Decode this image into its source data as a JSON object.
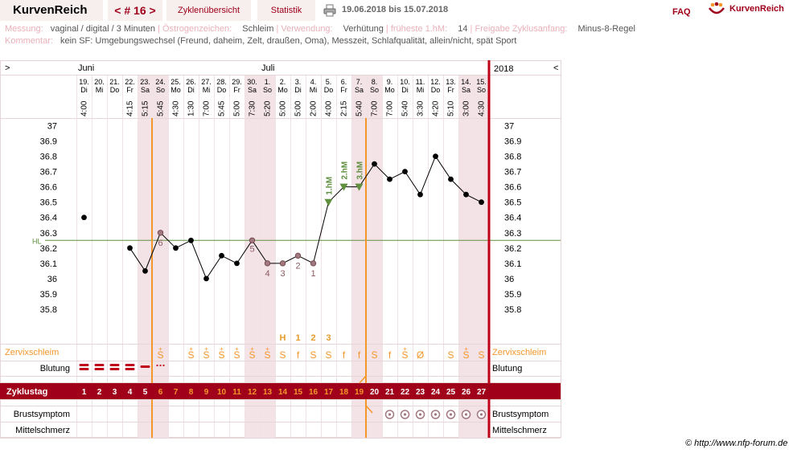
{
  "app": {
    "name": "KurvenReich",
    "cycle_nav": "< # 16 >",
    "tab_overview": "Zyklenübersicht",
    "tab_stats": "Statistik",
    "date_range": "19.06.2018 bis 15.07.2018",
    "faq": "FAQ",
    "logo_text": "KurvenReich"
  },
  "info": {
    "row1": [
      {
        "label": "Messung:",
        "value": "vaginal / digital / 3 Minuten"
      },
      {
        "label": "Östrogenzeichen:",
        "value": "Schleim"
      },
      {
        "label": "Verwendung:",
        "value": "Verhütung"
      },
      {
        "label": "früheste 1.hM:",
        "value": "14"
      },
      {
        "label": "Freigabe Zyklusanfang:",
        "value": "Minus-8-Regel"
      }
    ],
    "comment_label": "Kommentar:",
    "comment": "kein SF: Umgebungswechsel (Freund, daheim, Zelt, draußen, Oma), Messzeit, Schlafqualität, allein/nicht, spät Sport"
  },
  "header": {
    "left_arrow": ">",
    "right_arrow": "<",
    "year": "2018",
    "months": [
      {
        "name": "Juni",
        "day_index": 0
      },
      {
        "name": "Juli",
        "day_index": 12
      }
    ]
  },
  "rows": {
    "cervix": "Zervixschleim",
    "bleeding": "Blutung",
    "cycle_day": "Zyklustag",
    "breast": "Brustsymptom",
    "mittel": "Mittelschmerz"
  },
  "hl_label": "HL",
  "ylabels": [
    "37",
    "36.9",
    "36.8",
    "36.7",
    "36.6",
    "36.5",
    "36.4",
    "36.3",
    "36.2",
    "36.1",
    "36",
    "35.9",
    "35.8"
  ],
  "chart_data": {
    "type": "line",
    "ylim": [
      35.7,
      37.05
    ],
    "cover_line": 36.25,
    "days": [
      {
        "date": "19.",
        "wd": "Di",
        "time": "4:00",
        "temp": 36.4,
        "cycle": "1",
        "cervix": "",
        "bleed": "heavy",
        "weekend": false
      },
      {
        "date": "20.",
        "wd": "Mi",
        "time": "",
        "temp": null,
        "cycle": "2",
        "cervix": "",
        "bleed": "heavy",
        "weekend": false
      },
      {
        "date": "21.",
        "wd": "Do",
        "time": "",
        "temp": null,
        "cycle": "3",
        "cervix": "",
        "bleed": "heavy",
        "weekend": false
      },
      {
        "date": "22.",
        "wd": "Fr",
        "time": "4:15",
        "temp": 36.2,
        "cycle": "4",
        "cervix": "",
        "bleed": "heavy",
        "weekend": false
      },
      {
        "date": "23.",
        "wd": "Sa",
        "time": "5:15",
        "temp": 36.05,
        "cycle": "5",
        "cervix": "",
        "bleed": "medium",
        "weekend": true
      },
      {
        "date": "24.",
        "wd": "So",
        "time": "5:45",
        "temp": 36.3,
        "cycle": "6",
        "cervix": "S+",
        "bleed": "spot",
        "weekend": true
      },
      {
        "date": "25.",
        "wd": "Mo",
        "time": "4:30",
        "temp": 36.2,
        "cycle": "7",
        "cervix": "",
        "bleed": "",
        "weekend": false
      },
      {
        "date": "26.",
        "wd": "Di",
        "time": "1:30",
        "temp": 36.25,
        "cycle": "8",
        "cervix": "S+",
        "bleed": "",
        "weekend": false
      },
      {
        "date": "27.",
        "wd": "Mi",
        "time": "7:00",
        "temp": 36.0,
        "cycle": "9",
        "cervix": "S+",
        "bleed": "",
        "weekend": false
      },
      {
        "date": "28.",
        "wd": "Do",
        "time": "5:45",
        "temp": 36.15,
        "cycle": "10",
        "cervix": "S+",
        "bleed": "",
        "weekend": false
      },
      {
        "date": "29.",
        "wd": "Fr",
        "time": "5:00",
        "temp": 36.1,
        "cycle": "11",
        "cervix": "S+",
        "bleed": "",
        "weekend": false
      },
      {
        "date": "30.",
        "wd": "Sa",
        "time": "7:30",
        "temp": 36.25,
        "cycle": "12",
        "cervix": "S+",
        "bleed": "",
        "weekend": true
      },
      {
        "date": "1.",
        "wd": "So",
        "time": "5:20",
        "temp": 36.1,
        "cycle": "13",
        "cervix": "S+",
        "bleed": "",
        "weekend": true
      },
      {
        "date": "2.",
        "wd": "Mo",
        "time": "5:00",
        "temp": 36.1,
        "cycle": "14",
        "cervix": "S",
        "bleed": "",
        "weekend": false
      },
      {
        "date": "3.",
        "wd": "Di",
        "time": "5:00",
        "temp": 36.15,
        "cycle": "15",
        "cervix": "f",
        "bleed": "",
        "weekend": false
      },
      {
        "date": "4.",
        "wd": "Mi",
        "time": "2:00",
        "temp": 36.1,
        "cycle": "16",
        "cervix": "S",
        "bleed": "",
        "weekend": false
      },
      {
        "date": "5.",
        "wd": "Do",
        "time": "4:00",
        "temp": 36.5,
        "cycle": "17",
        "cervix": "S",
        "bleed": "",
        "weekend": false
      },
      {
        "date": "6.",
        "wd": "Fr",
        "time": "2:15",
        "temp": 36.6,
        "cycle": "18",
        "cervix": "f",
        "bleed": "",
        "weekend": false
      },
      {
        "date": "7.",
        "wd": "Sa",
        "time": "5:40",
        "temp": 36.6,
        "cycle": "19",
        "cervix": "f",
        "bleed": "",
        "weekend": true
      },
      {
        "date": "8.",
        "wd": "So",
        "time": "7:00",
        "temp": 36.75,
        "cycle": "20",
        "cervix": "S",
        "bleed": "",
        "weekend": true
      },
      {
        "date": "9.",
        "wd": "Mo",
        "time": "7:00",
        "temp": 36.65,
        "cycle": "21",
        "cervix": "f",
        "bleed": "",
        "weekend": false
      },
      {
        "date": "10.",
        "wd": "Di",
        "time": "5:40",
        "temp": 36.7,
        "cycle": "22",
        "cervix": "S+",
        "bleed": "",
        "weekend": false
      },
      {
        "date": "11.",
        "wd": "Mi",
        "time": "3:30",
        "temp": 36.55,
        "cycle": "23",
        "cervix": "Ø",
        "bleed": "",
        "weekend": false
      },
      {
        "date": "12.",
        "wd": "Do",
        "time": "4:20",
        "temp": 36.8,
        "cycle": "24",
        "cervix": "",
        "bleed": "",
        "weekend": false
      },
      {
        "date": "13.",
        "wd": "Fr",
        "time": "5:10",
        "temp": 36.65,
        "cycle": "25",
        "cervix": "S",
        "bleed": "",
        "weekend": false
      },
      {
        "date": "14.",
        "wd": "Sa",
        "time": "3:00",
        "temp": 36.55,
        "cycle": "26",
        "cervix": "S+",
        "bleed": "",
        "weekend": true
      },
      {
        "date": "15.",
        "wd": "So",
        "time": "4:30",
        "temp": 36.5,
        "cycle": "27",
        "cervix": "S",
        "bleed": "",
        "weekend": true
      }
    ],
    "low_labels": [
      {
        "day": 5,
        "text": "6"
      },
      {
        "day": 11,
        "text": "5"
      },
      {
        "day": 12,
        "text": "4"
      },
      {
        "day": 13,
        "text": "3"
      },
      {
        "day": 14,
        "text": "2"
      },
      {
        "day": 15,
        "text": "1"
      }
    ],
    "high_labels": [
      {
        "day": 16,
        "text": "1.hM"
      },
      {
        "day": 17,
        "text": "2.hM"
      },
      {
        "day": 18,
        "text": "3.hM"
      }
    ],
    "peak_labels": [
      {
        "day": 13,
        "text": "H"
      },
      {
        "day": 14,
        "text": "1"
      },
      {
        "day": 15,
        "text": "2"
      },
      {
        "day": 16,
        "text": "3"
      }
    ],
    "breast_days": [
      20,
      21,
      22,
      23,
      24,
      25,
      26
    ],
    "orange_lines": [
      5,
      19
    ]
  },
  "copyright": "© http://www.nfp-forum.de",
  "colors": {
    "brand": "#a0001a",
    "orange": "#f5962a",
    "green": "#5f8f3f",
    "peak": "#e49b2c",
    "weekend": "#f3e3e6"
  }
}
